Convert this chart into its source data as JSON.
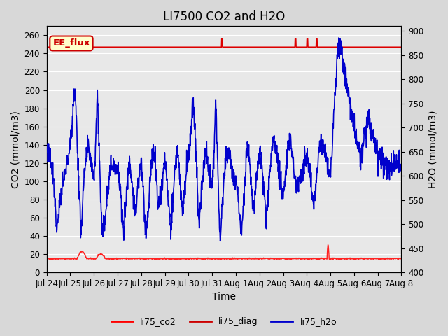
{
  "title": "LI7500 CO2 and H2O",
  "xlabel": "Time",
  "ylabel_left": "CO2 (mmol/m3)",
  "ylabel_right": "H2O (mmol/m3)",
  "ylim_left": [
    0,
    270
  ],
  "ylim_right": [
    400,
    910
  ],
  "yticks_left": [
    0,
    20,
    40,
    60,
    80,
    100,
    120,
    140,
    160,
    180,
    200,
    220,
    240,
    260
  ],
  "yticks_right": [
    400,
    450,
    500,
    550,
    600,
    650,
    700,
    750,
    800,
    850,
    900
  ],
  "xtick_labels": [
    "Jul 24",
    "Jul 25",
    "Jul 26",
    "Jul 27",
    "Jul 28",
    "Jul 29",
    "Jul 30",
    "Jul 31",
    "Aug 1",
    "Aug 2",
    "Aug 3",
    "Aug 4",
    "Aug 5",
    "Aug 6",
    "Aug 7",
    "Aug 8"
  ],
  "legend_entries": [
    "li75_co2",
    "li75_diag",
    "li75_h2o"
  ],
  "legend_colors": [
    "#ff0000",
    "#cc0000",
    "#0000cc"
  ],
  "annotation_text": "EE_flux",
  "annotation_color": "#cc0000",
  "annotation_bg": "#ffffcc",
  "co2_color": "#ff2222",
  "diag_color": "#dd0000",
  "h2o_color": "#0000cc",
  "background_color": "#e8e8e8",
  "grid_color": "#ffffff",
  "title_fontsize": 12,
  "axis_fontsize": 10,
  "tick_fontsize": 8.5
}
